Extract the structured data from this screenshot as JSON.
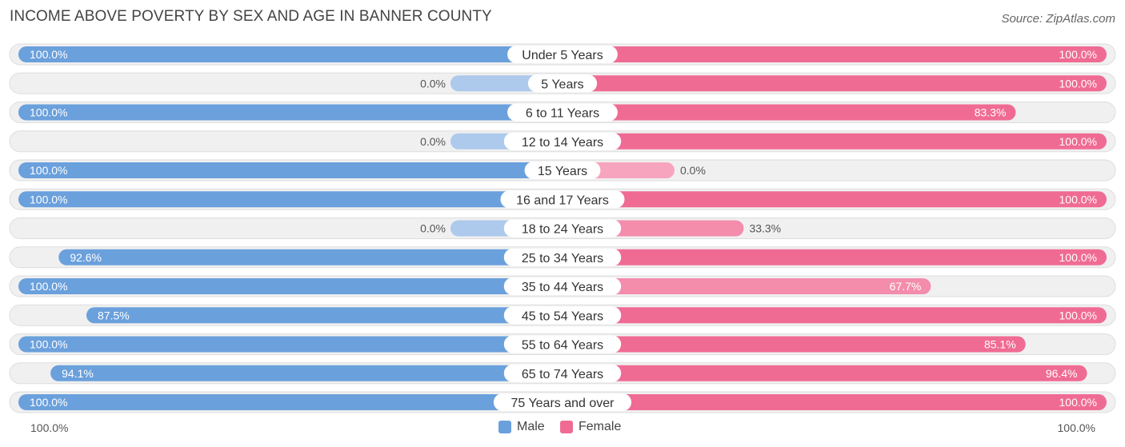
{
  "chart_data": {
    "type": "bar",
    "orientation": "diverging-horizontal",
    "title": "INCOME ABOVE POVERTY BY SEX AND AGE IN BANNER COUNTY",
    "source": "Source: ZipAtlas.com",
    "categories": [
      "Under 5 Years",
      "5 Years",
      "6 to 11 Years",
      "12 to 14 Years",
      "15 Years",
      "16 and 17 Years",
      "18 to 24 Years",
      "25 to 34 Years",
      "35 to 44 Years",
      "45 to 54 Years",
      "55 to 64 Years",
      "65 to 74 Years",
      "75 Years and over"
    ],
    "series": [
      {
        "name": "Male",
        "values": [
          100.0,
          0.0,
          100.0,
          0.0,
          100.0,
          100.0,
          0.0,
          92.6,
          100.0,
          87.5,
          100.0,
          94.1,
          100.0
        ],
        "labels": [
          "100.0%",
          "0.0%",
          "100.0%",
          "0.0%",
          "100.0%",
          "100.0%",
          "0.0%",
          "92.6%",
          "100.0%",
          "87.5%",
          "100.0%",
          "94.1%",
          "100.0%"
        ]
      },
      {
        "name": "Female",
        "values": [
          100.0,
          100.0,
          83.3,
          100.0,
          0.0,
          100.0,
          33.3,
          100.0,
          67.7,
          100.0,
          85.1,
          96.4,
          100.0
        ],
        "labels": [
          "100.0%",
          "100.0%",
          "83.3%",
          "100.0%",
          "0.0%",
          "100.0%",
          "33.3%",
          "100.0%",
          "67.7%",
          "100.0%",
          "85.1%",
          "96.4%",
          "100.0%"
        ]
      }
    ],
    "xlim": [
      0,
      100
    ],
    "axis_left_label": "100.0%",
    "axis_right_label": "100.0%",
    "colors": {
      "male": "#6aa0dc",
      "male_light": "#adc9ec",
      "female": "#f06b94",
      "female_light": "#f7a5bf",
      "row_bg": "#f0f0f0",
      "row_border": "#dddddd"
    }
  },
  "legend": [
    {
      "label": "Male",
      "color": "#6aa0dc"
    },
    {
      "label": "Female",
      "color": "#f06b94"
    }
  ]
}
